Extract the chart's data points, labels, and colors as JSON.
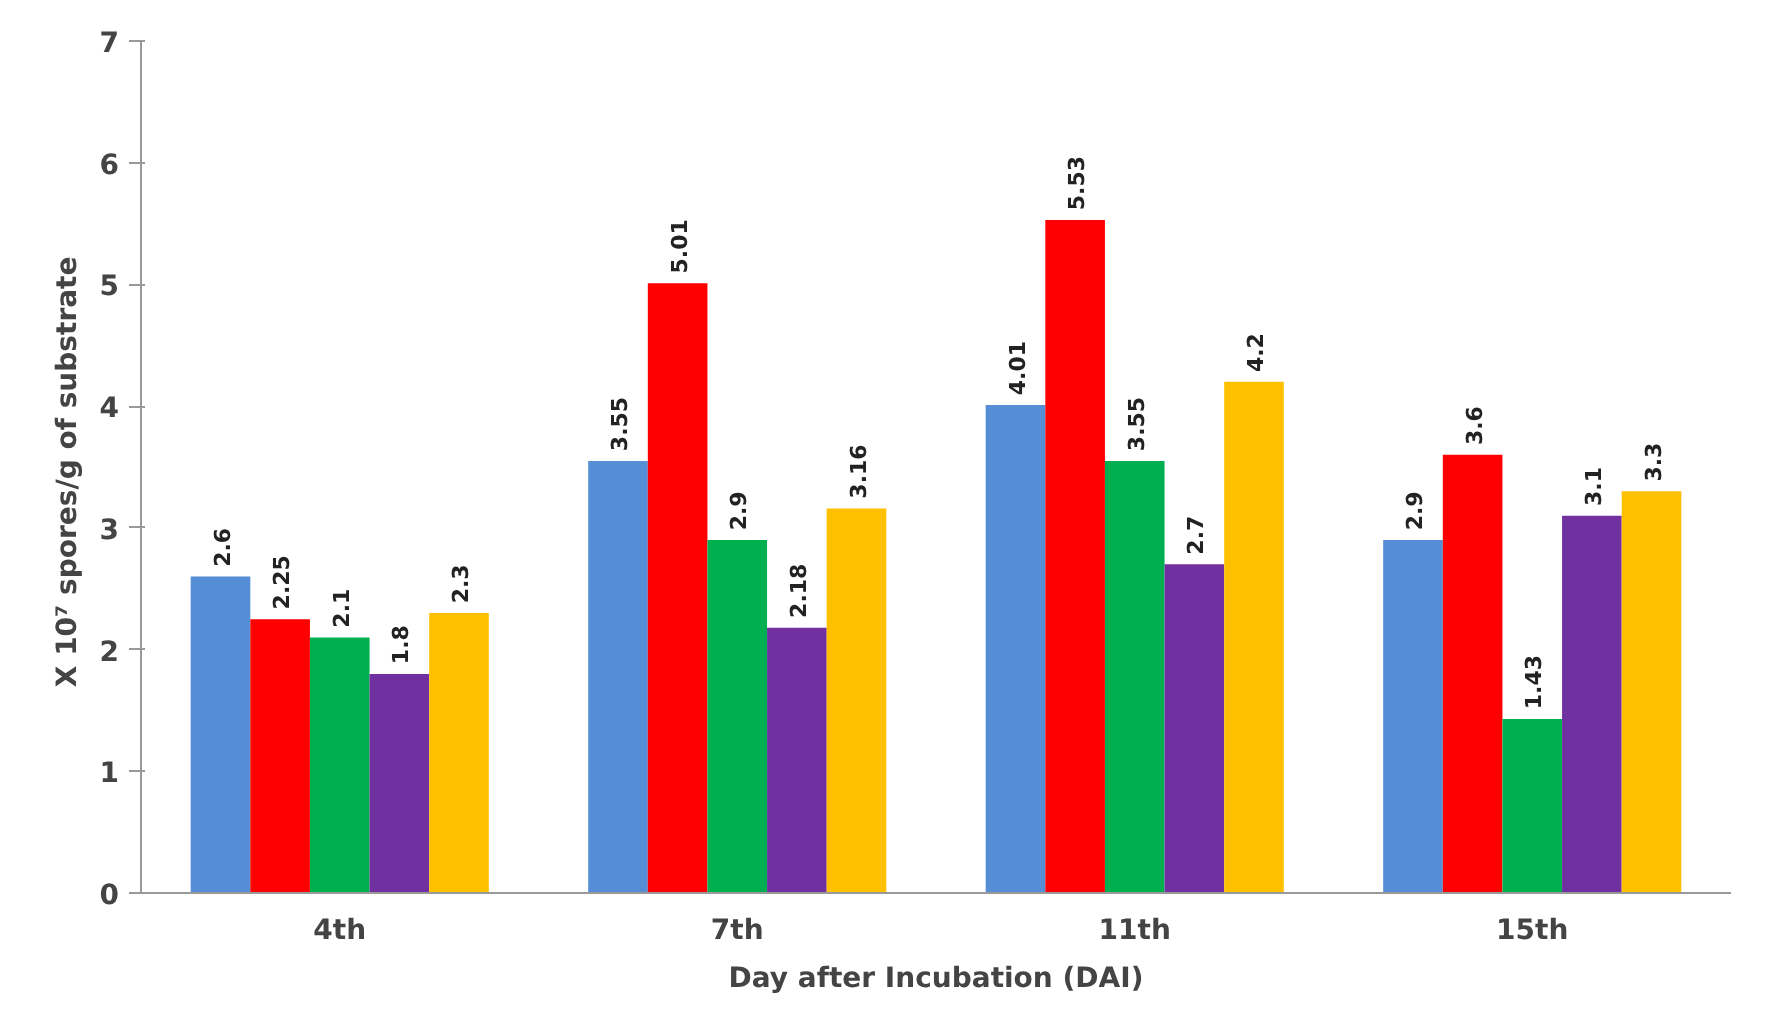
{
  "chart_data": {
    "type": "bar",
    "xlabel": "Day after Incubation (DAI)",
    "ylabel": "X 10⁷  spores/g of substrate",
    "categories": [
      "4th",
      "7th",
      "11th",
      "15th"
    ],
    "series": [
      {
        "color": "#558ed5",
        "values": [
          2.6,
          3.55,
          4.01,
          2.9
        ]
      },
      {
        "color": "#ff0000",
        "values": [
          2.25,
          5.01,
          5.53,
          3.6
        ]
      },
      {
        "color": "#00b050",
        "values": [
          2.1,
          2.9,
          3.55,
          1.43
        ]
      },
      {
        "color": "#7030a0",
        "values": [
          1.8,
          2.18,
          2.7,
          3.1
        ]
      },
      {
        "color": "#ffc000",
        "values": [
          2.3,
          3.16,
          4.2,
          3.3
        ]
      }
    ],
    "ylim": [
      0,
      7
    ],
    "yticks": [
      0,
      1,
      2,
      3,
      4,
      5,
      6,
      7
    ],
    "grid": false,
    "data_labels": true
  }
}
